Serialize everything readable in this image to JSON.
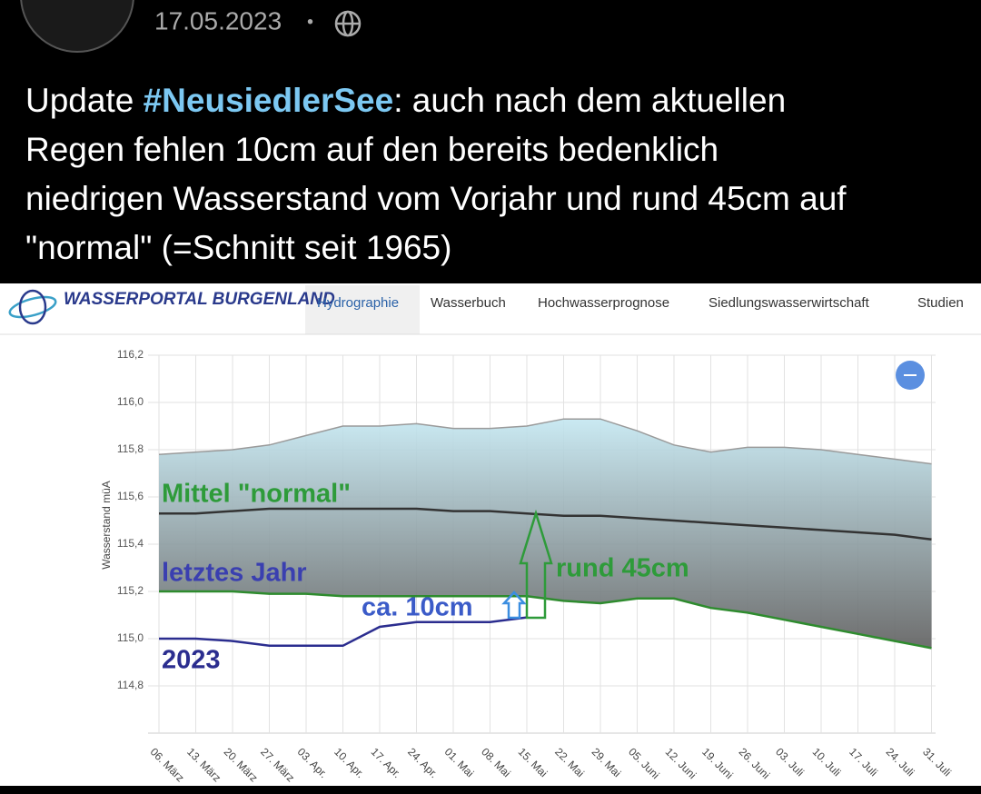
{
  "post": {
    "date": "17.05.2023",
    "separator": "•",
    "text_start": "Update ",
    "hashtag": "#NeusiedlerSee",
    "text_lines": [
      ": auch nach dem aktuellen",
      "Regen fehlen 10cm auf den bereits bedenklich",
      "niedrigen Wasserstand vom Vorjahr und rund 45cm auf",
      "\"normal\" (=Schnitt seit 1965)"
    ]
  },
  "site": {
    "logo": "WASSERPORTAL BURGENLAND",
    "nav": [
      "Hydrographie",
      "Wasserbuch",
      "Hochwasserprognose",
      "Siedlungswasserwirtschaft",
      "Studien"
    ]
  },
  "chart_data": {
    "type": "line",
    "y_label": "Wasserstand müA",
    "categories": [
      "06. März",
      "13. März",
      "20. März",
      "27. März",
      "03. Apr.",
      "10. Apr.",
      "17. Apr.",
      "24. Apr.",
      "01. Mai",
      "08. Mai",
      "15. Mai",
      "22. Mai",
      "29. Mai",
      "05. Juni",
      "12. Juni",
      "19. Juni",
      "26. Juni",
      "03. Juli",
      "10. Juli",
      "17. Juli",
      "24. Juli",
      "31. Juli"
    ],
    "series": [
      {
        "color": "#9a9a9a",
        "values": [
          115.78,
          115.79,
          115.8,
          115.82,
          115.86,
          115.9,
          115.9,
          115.91,
          115.89,
          115.89,
          115.9,
          115.93,
          115.93,
          115.88,
          115.82,
          115.79,
          115.81,
          115.81,
          115.8,
          115.78,
          115.76,
          115.74
        ]
      },
      {
        "name": "Mittel \"normal\"",
        "color": "#333333",
        "values": [
          115.53,
          115.53,
          115.54,
          115.55,
          115.55,
          115.55,
          115.55,
          115.55,
          115.54,
          115.54,
          115.53,
          115.52,
          115.52,
          115.51,
          115.5,
          115.49,
          115.48,
          115.47,
          115.46,
          115.45,
          115.44,
          115.42
        ]
      },
      {
        "name": "letztes Jahr",
        "color": "#2e8b2e",
        "values": [
          115.2,
          115.2,
          115.2,
          115.19,
          115.19,
          115.18,
          115.18,
          115.18,
          115.18,
          115.18,
          115.18,
          115.16,
          115.15,
          115.17,
          115.17,
          115.13,
          115.11,
          115.08,
          115.05,
          115.02,
          114.99,
          114.96
        ]
      },
      {
        "name": "2023",
        "color": "#2b2d8f",
        "values": [
          115.0,
          115.0,
          114.99,
          114.97,
          114.97,
          114.97,
          115.05,
          115.07,
          115.07,
          115.07,
          115.09,
          null,
          null,
          null,
          null,
          null,
          null,
          null,
          null,
          null,
          null,
          null
        ]
      }
    ],
    "annotations": [
      "ca. 10cm",
      "rund 45cm"
    ],
    "ylim": [
      114.6,
      116.2
    ],
    "yticks": [
      {
        "value": 114.8,
        "label": "114,8"
      },
      {
        "value": 115.0,
        "label": "115,0"
      },
      {
        "value": 115.2,
        "label": "115,2"
      },
      {
        "value": 115.4,
        "label": "115,4"
      },
      {
        "value": 115.6,
        "label": "115,6"
      },
      {
        "value": 115.8,
        "label": "115,8"
      },
      {
        "value": 116.0,
        "label": "116,0"
      },
      {
        "value": 116.2,
        "label": "116,2"
      }
    ],
    "grid": true
  }
}
